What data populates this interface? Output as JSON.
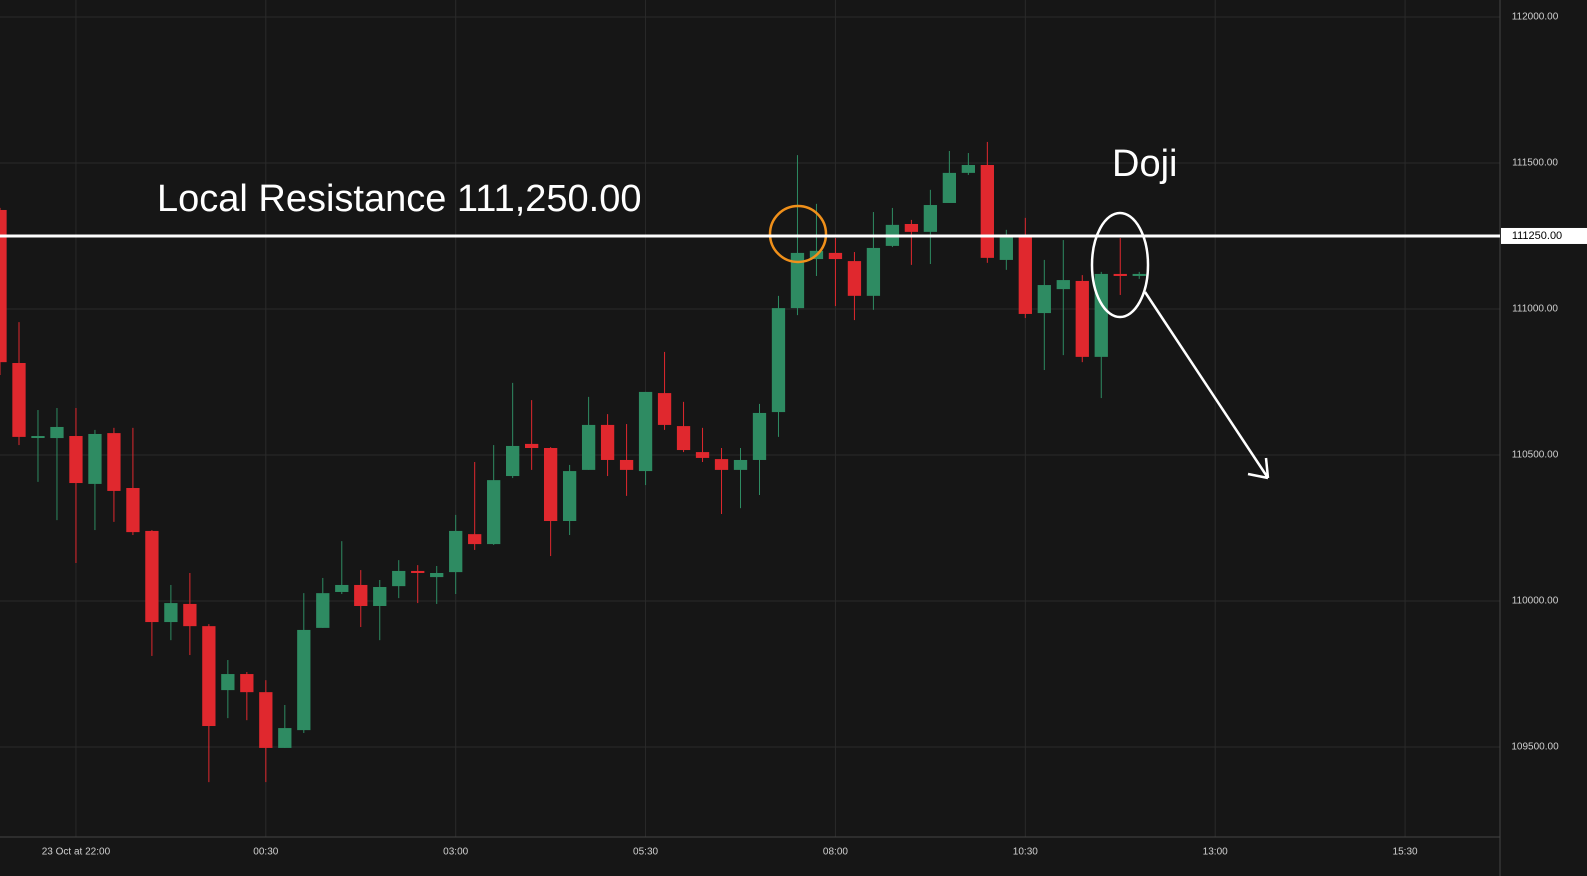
{
  "chart_data": {
    "type": "candlestick",
    "annotations": [
      "Local Resistance 111,250.00",
      "Doji"
    ],
    "resistance": {
      "value": 111250,
      "label": "111250.00"
    },
    "up_color": "#2e8b62",
    "down_color": "#e0282e",
    "grid": true,
    "x": [
      -4,
      -3,
      -2,
      -1,
      0,
      1,
      2,
      3,
      4,
      5,
      6,
      7,
      8,
      9,
      10,
      11,
      12,
      13,
      14,
      15,
      16,
      17,
      18,
      19,
      20,
      21,
      22,
      23,
      24,
      25,
      26,
      27,
      28,
      29,
      30,
      31,
      32,
      33,
      34,
      35,
      36,
      37,
      38,
      39,
      40,
      41,
      42,
      43,
      44,
      45,
      46,
      47,
      48,
      49,
      50,
      51,
      52,
      53,
      54,
      55,
      56
    ],
    "open": [
      111339,
      110815,
      110560,
      110558,
      110565,
      110401,
      110575,
      110387,
      110240,
      109928,
      109990,
      109914,
      109695,
      109750,
      109688,
      109497,
      109558,
      109908,
      110031,
      110055,
      109983,
      110051,
      110103,
      110082,
      110099,
      110229,
      110195,
      110428,
      110538,
      110524,
      110274,
      110449,
      110603,
      110483,
      110445,
      110712,
      110599,
      110510,
      110486,
      110449,
      110483,
      110647,
      111003,
      111171,
      111192,
      111164,
      111045,
      111216,
      111291,
      111264,
      111363,
      111466,
      111493,
      111168,
      111253,
      110986,
      111068,
      111096,
      110836,
      111120,
      111113
    ],
    "high": [
      111346,
      110955,
      110654,
      110661,
      110661,
      110586,
      110593,
      110593,
      110243,
      110055,
      110096,
      109921,
      109798,
      109757,
      109729,
      109644,
      110027,
      110079,
      110205,
      110106,
      110072,
      110140,
      110123,
      110120,
      110295,
      110476,
      110534,
      110747,
      110688,
      110527,
      110466,
      110699,
      110640,
      110606,
      110716,
      110853,
      110682,
      110593,
      110524,
      110524,
      110675,
      111045,
      111527,
      111360,
      111243,
      111195,
      111332,
      111346,
      111305,
      111408,
      111541,
      111534,
      111572,
      111271,
      111312,
      111168,
      111236,
      111116,
      111127,
      111243,
      111127
    ],
    "low": [
      110774,
      110534,
      110408,
      110277,
      110130,
      110243,
      110271,
      110226,
      109812,
      109866,
      109815,
      109380,
      109599,
      109592,
      109380,
      109497,
      109548,
      109908,
      110024,
      109911,
      109866,
      110010,
      109993,
      109990,
      110024,
      110175,
      110192,
      110421,
      110449,
      110154,
      110226,
      110449,
      110428,
      110360,
      110397,
      110586,
      110510,
      110476,
      110298,
      110318,
      110363,
      110562,
      110979,
      111113,
      111010,
      110962,
      110997,
      111212,
      111151,
      111154,
      111363,
      111459,
      111158,
      111134,
      110969,
      110791,
      110842,
      110818,
      110695,
      111048,
      111103
    ],
    "close": [
      110818,
      110562,
      110565,
      110596,
      110404,
      110572,
      110377,
      110236,
      109928,
      109993,
      109914,
      109572,
      109750,
      109688,
      109497,
      109565,
      109901,
      110027,
      110055,
      109983,
      110048,
      110103,
      110096,
      110096,
      110240,
      110195,
      110414,
      110531,
      110524,
      110274,
      110445,
      110603,
      110483,
      110449,
      110716,
      110603,
      110517,
      110490,
      110449,
      110483,
      110644,
      111003,
      111192,
      111199,
      111171,
      111045,
      111209,
      111288,
      111264,
      111356,
      111466,
      111493,
      111175,
      111250,
      110983,
      111082,
      111099,
      110836,
      111120,
      111113,
      111120
    ],
    "xlim": [
      -4,
      75
    ],
    "xticks": [
      {
        "value": 0,
        "label": "23 Oct at 22:00"
      },
      {
        "value": 10,
        "label": "00:30"
      },
      {
        "value": 20,
        "label": "03:00"
      },
      {
        "value": 30,
        "label": "05:30"
      },
      {
        "value": 40,
        "label": "08:00"
      },
      {
        "value": 50,
        "label": "10:30"
      },
      {
        "value": 60,
        "label": "13:00"
      },
      {
        "value": 70,
        "label": "15:30"
      }
    ],
    "ylim": [
      109192,
      112058
    ],
    "yticks": [
      {
        "value": 112000,
        "label": "112000.00"
      },
      {
        "value": 111500,
        "label": "111500.00"
      },
      {
        "value": 111000,
        "label": "111000.00"
      },
      {
        "value": 110500,
        "label": "110500.00"
      },
      {
        "value": 110000,
        "label": "110000.00"
      },
      {
        "value": 109500,
        "label": "109500.00"
      }
    ]
  }
}
